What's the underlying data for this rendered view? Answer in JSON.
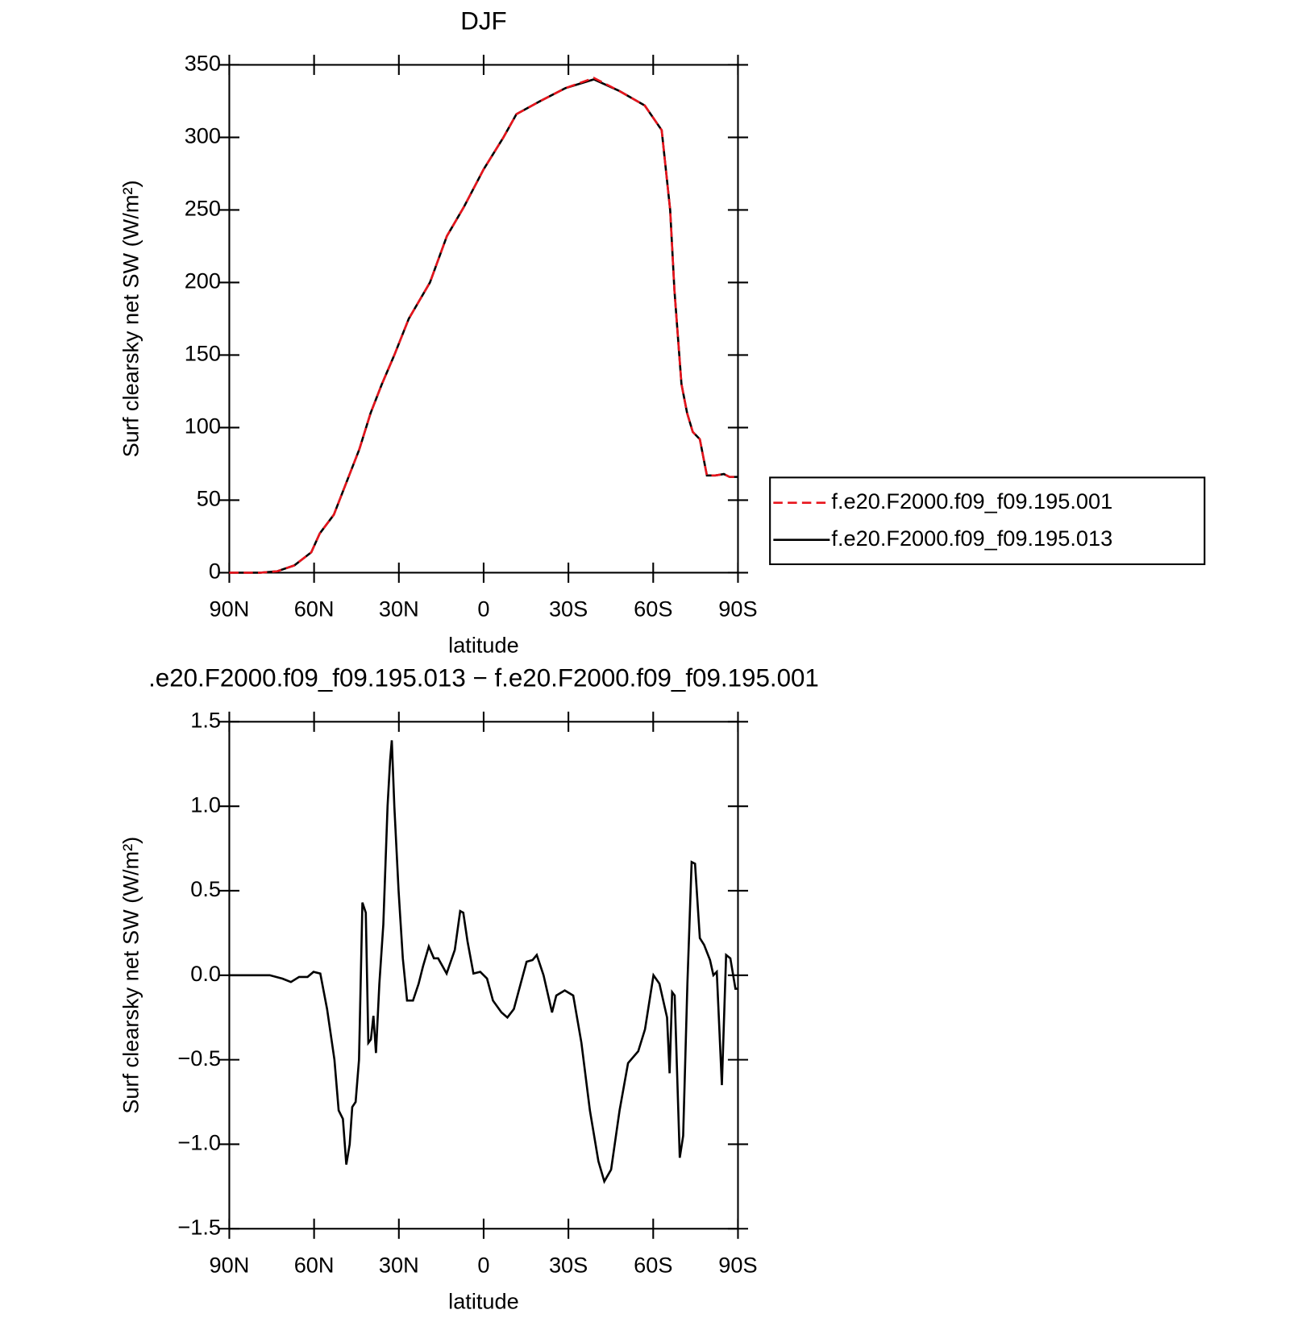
{
  "chart_data": [
    {
      "type": "line",
      "title": "DJF",
      "xlabel": "latitude",
      "ylabel": "Surf clearsky net SW (W/m²)",
      "xlim": [
        90,
        -90
      ],
      "ylim": [
        0,
        350
      ],
      "xticks": [
        {
          "value": 90,
          "label": "90N"
        },
        {
          "value": 60,
          "label": "60N"
        },
        {
          "value": 30,
          "label": "30N"
        },
        0,
        {
          "value": -30,
          "label": "30S"
        },
        {
          "value": -60,
          "label": "60S"
        },
        {
          "value": -90,
          "label": "90S"
        }
      ],
      "yticks": [
        0,
        50,
        100,
        150,
        200,
        250,
        300,
        350
      ],
      "legend": "right",
      "series": [
        {
          "name": "f.e20.F2000.f09_f09.195.001",
          "color": "#e8141c",
          "linestyle": "dashed",
          "x": [
            90,
            79,
            73,
            67,
            61,
            58,
            53,
            49,
            44,
            40,
            36,
            31.6,
            26.5,
            19,
            13,
            7,
            0,
            -7,
            -11.6,
            -20,
            -29,
            -39,
            -48,
            -57,
            -63,
            -66,
            -67.5,
            -70,
            -72,
            -74,
            -76.5,
            -79,
            -82,
            -85,
            -87,
            -90
          ],
          "values": [
            0,
            0,
            1,
            5,
            14,
            27,
            40,
            60,
            85,
            110,
            130,
            150,
            175,
            200,
            232,
            252,
            278,
            300,
            316,
            325,
            334,
            341,
            332,
            322,
            305,
            250,
            195,
            130,
            110,
            97,
            92,
            67,
            67,
            68,
            66,
            66
          ]
        },
        {
          "name": "f.e20.F2000.f09_f09.195.013",
          "color": "#000000",
          "linestyle": "solid",
          "x": [
            90,
            79,
            73,
            67,
            61,
            58,
            53,
            49,
            44,
            40,
            36,
            31.6,
            26.5,
            19,
            13,
            7,
            0,
            -7,
            -11.6,
            -20,
            -29,
            -39,
            -48,
            -57,
            -63,
            -66,
            -67.5,
            -70,
            -72,
            -74,
            -76.5,
            -79,
            -82,
            -85,
            -87,
            -90
          ],
          "values": [
            0,
            0,
            1,
            5,
            14,
            27,
            40,
            60,
            85,
            110,
            130,
            150,
            175,
            200,
            232,
            252,
            278,
            300,
            316,
            325,
            334,
            340,
            332,
            322,
            305,
            250,
            195,
            130,
            110,
            97,
            92,
            67,
            67,
            68,
            66,
            66
          ]
        }
      ]
    },
    {
      "type": "line",
      "title": ".e20.F2000.f09_f09.195.013 − f.e20.F2000.f09_f09.195.001",
      "xlabel": "latitude",
      "ylabel": "Surf clearsky net SW (W/m²)",
      "xlim": [
        90,
        -90
      ],
      "ylim": [
        -1.5,
        1.5
      ],
      "xticks": [
        {
          "value": 90,
          "label": "90N"
        },
        {
          "value": 60,
          "label": "60N"
        },
        {
          "value": 30,
          "label": "30N"
        },
        0,
        {
          "value": -30,
          "label": "30S"
        },
        {
          "value": -60,
          "label": "60S"
        },
        {
          "value": -90,
          "label": "90S"
        }
      ],
      "yticks": [
        {
          "value": -1.5,
          "label": "−1.5"
        },
        {
          "value": -1,
          "label": "−1.0"
        },
        {
          "value": -0.5,
          "label": "−0.5"
        },
        {
          "value": 0,
          "label": "0.0"
        },
        0.5,
        {
          "value": 1,
          "label": "1.0"
        },
        1.5
      ],
      "series": [
        {
          "color": "#000000",
          "linestyle": "solid",
          "x": [
            90,
            75.7,
            71.2,
            68.2,
            65.3,
            62.3,
            60.2,
            57.8,
            55.4,
            52.8,
            51.3,
            49.8,
            48.6,
            47.4,
            46.5,
            45.3,
            44.1,
            42.9,
            41.7,
            40.8,
            39.9,
            39,
            38.1,
            36.9,
            35.5,
            34,
            33.1,
            32.5,
            31.6,
            30.1,
            28.6,
            27.1,
            25,
            23,
            21.5,
            19.4,
            17.6,
            16.1,
            13.1,
            10.2,
            8.3,
            7.2,
            5.7,
            3.6,
            1.2,
            -1.2,
            -3.3,
            -6.3,
            -8.4,
            -10.7,
            -13.1,
            -15.2,
            -17.3,
            -18.8,
            -21.2,
            -24.2,
            -25.7,
            -28.7,
            -31.7,
            -34.6,
            -37.6,
            -40.6,
            -42.7,
            -45.1,
            -48.1,
            -51.1,
            -54.7,
            -57.1,
            -60.1,
            -62.2,
            -64.9,
            -65.8,
            -66.7,
            -67.6,
            -69.4,
            -70.6,
            -72.1,
            -73.6,
            -74.8,
            -76.5,
            -78,
            -80.1,
            -81.3,
            -82.5,
            -84.3,
            -85.8,
            -87.3,
            -89.1,
            -90
          ],
          "values": [
            0,
            0,
            -0.02,
            -0.04,
            -0.01,
            -0.01,
            0.02,
            0.01,
            -0.2,
            -0.5,
            -0.8,
            -0.85,
            -1.12,
            -1.0,
            -0.78,
            -0.75,
            -0.5,
            0.43,
            0.37,
            -0.4,
            -0.38,
            -0.24,
            -0.46,
            -0.05,
            0.3,
            1.0,
            1.27,
            1.39,
            1.0,
            0.5,
            0.1,
            -0.15,
            -0.15,
            -0.05,
            0.05,
            0.17,
            0.1,
            0.1,
            0.01,
            0.15,
            0.38,
            0.37,
            0.2,
            0.01,
            0.02,
            -0.02,
            -0.15,
            -0.22,
            -0.25,
            -0.2,
            -0.05,
            0.08,
            0.09,
            0.12,
            0.0,
            -0.22,
            -0.12,
            -0.09,
            -0.12,
            -0.4,
            -0.8,
            -1.1,
            -1.22,
            -1.15,
            -0.8,
            -0.52,
            -0.45,
            -0.32,
            0.0,
            -0.05,
            -0.25,
            -0.58,
            -0.1,
            -0.12,
            -1.08,
            -0.95,
            -0.05,
            0.67,
            0.66,
            0.22,
            0.18,
            0.09,
            0.0,
            0.02,
            -0.65,
            0.12,
            0.1,
            -0.08,
            -0.08
          ]
        }
      ]
    }
  ]
}
